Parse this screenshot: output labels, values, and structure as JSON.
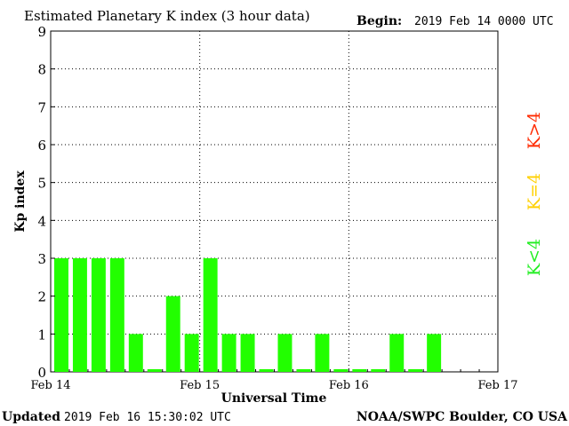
{
  "header": {
    "title": "Estimated Planetary K index (3 hour data)",
    "begin_label": "Begin:",
    "begin_value": "2019 Feb 14 0000 UTC"
  },
  "footer": {
    "updated_label": "Updated",
    "updated_value": "2019 Feb 16 15:30:02 UTC",
    "source": "NOAA/SWPC Boulder, CO USA"
  },
  "legend": [
    {
      "text": "K>4",
      "color": "#ff2a00"
    },
    {
      "text": "K=4",
      "color": "#ffd000"
    },
    {
      "text": "K<4",
      "color": "#22ee22"
    }
  ],
  "chart_data": {
    "type": "bar",
    "title": "Estimated Planetary K index (3 hour data)",
    "xlabel": "Universal Time",
    "ylabel": "Kp index",
    "ylim": [
      0,
      9
    ],
    "yticks": [
      0,
      1,
      2,
      3,
      4,
      5,
      6,
      7,
      8,
      9
    ],
    "xticks": [
      "Feb 14",
      "Feb 15",
      "Feb 16",
      "Feb 17"
    ],
    "bar_color": "#22ff00",
    "bins_per_day": 8,
    "values": [
      3,
      3,
      3,
      3,
      1,
      0,
      2,
      1,
      3,
      1,
      1,
      0,
      1,
      0,
      1,
      0,
      0,
      0,
      1,
      0,
      1
    ],
    "grid": true
  }
}
